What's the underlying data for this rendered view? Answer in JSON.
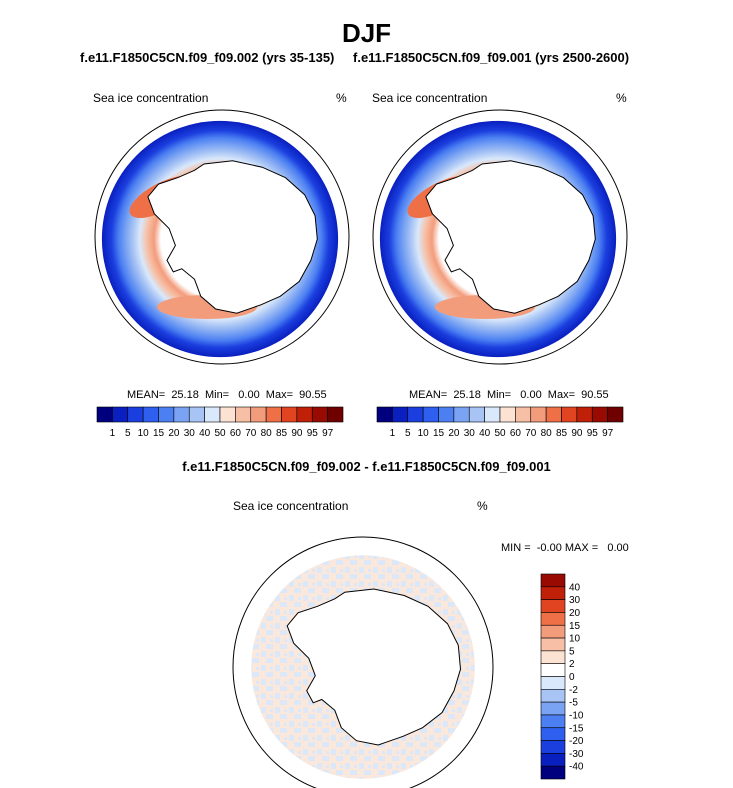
{
  "title": "DJF",
  "case_a_title": "f.e11.F1850C5CN.f09_f09.002 (yrs 35-135)",
  "case_b_title": "f.e11.F1850C5CN.f09_f09.001 (yrs 2500-2600)",
  "diff_title": "f.e11.F1850C5CN.f09_f09.002 - f.e11.F1850C5CN.f09_f09.001",
  "panels": {
    "case_a": {
      "left_label": "Sea ice concentration",
      "right_label": "%",
      "stats": "MEAN=  25.18  Min=   0.00  Max=  90.55"
    },
    "case_b": {
      "left_label": "Sea ice concentration",
      "right_label": "%",
      "stats": "MEAN=  25.18  Min=   0.00  Max=  90.55"
    },
    "diff": {
      "left_label": "Sea ice concentration",
      "right_label": "%",
      "stats": "MIN =  -0.00 MAX =   0.00"
    }
  },
  "colorbars": {
    "main": {
      "labels": [
        "1",
        "5",
        "10",
        "15",
        "20",
        "30",
        "40",
        "50",
        "60",
        "70",
        "80",
        "85",
        "90",
        "95",
        "97"
      ],
      "colors": [
        "#00007f",
        "#0a1fbf",
        "#1b3fdf",
        "#2e5fef",
        "#4b7ff2",
        "#7aa3f3",
        "#a8c4f5",
        "#d9e8fb",
        "#fbe2d2",
        "#f7c0a6",
        "#f39c7c",
        "#ef6f46",
        "#e04420",
        "#c02008",
        "#980a02",
        "#6f0000"
      ]
    },
    "diff": {
      "labels": [
        "40",
        "30",
        "20",
        "15",
        "10",
        "5",
        "2",
        "0",
        "-2",
        "-5",
        "-10",
        "-15",
        "-20",
        "-30",
        "-40"
      ],
      "colors": [
        "#980a02",
        "#c02008",
        "#e04420",
        "#ef6f46",
        "#f39c7c",
        "#f7c0a6",
        "#fbe2d2",
        "#ffffff",
        "#d9e8fb",
        "#a8c4f5",
        "#7aa3f3",
        "#4b7ff2",
        "#2e5fef",
        "#1b3fdf",
        "#0a1fbf",
        "#00007f"
      ]
    }
  },
  "chart_data": [
    {
      "type": "heatmap",
      "title": "f.e11.F1850C5CN.f09_f09.002 (yrs 35-135)",
      "variable": "Sea ice concentration",
      "units": "%",
      "mean": 25.18,
      "min": 0.0,
      "max": 90.55,
      "projection": "south polar stereographic"
    },
    {
      "type": "heatmap",
      "title": "f.e11.F1850C5CN.f09_f09.001 (yrs 2500-2600)",
      "variable": "Sea ice concentration",
      "units": "%",
      "mean": 25.18,
      "min": 0.0,
      "max": 90.55,
      "projection": "south polar stereographic"
    },
    {
      "type": "heatmap",
      "title": "f.e11.F1850C5CN.f09_f09.002 - f.e11.F1850C5CN.f09_f09.001",
      "variable": "Sea ice concentration",
      "units": "%",
      "min": -0.0,
      "max": 0.0,
      "projection": "south polar stereographic"
    }
  ]
}
